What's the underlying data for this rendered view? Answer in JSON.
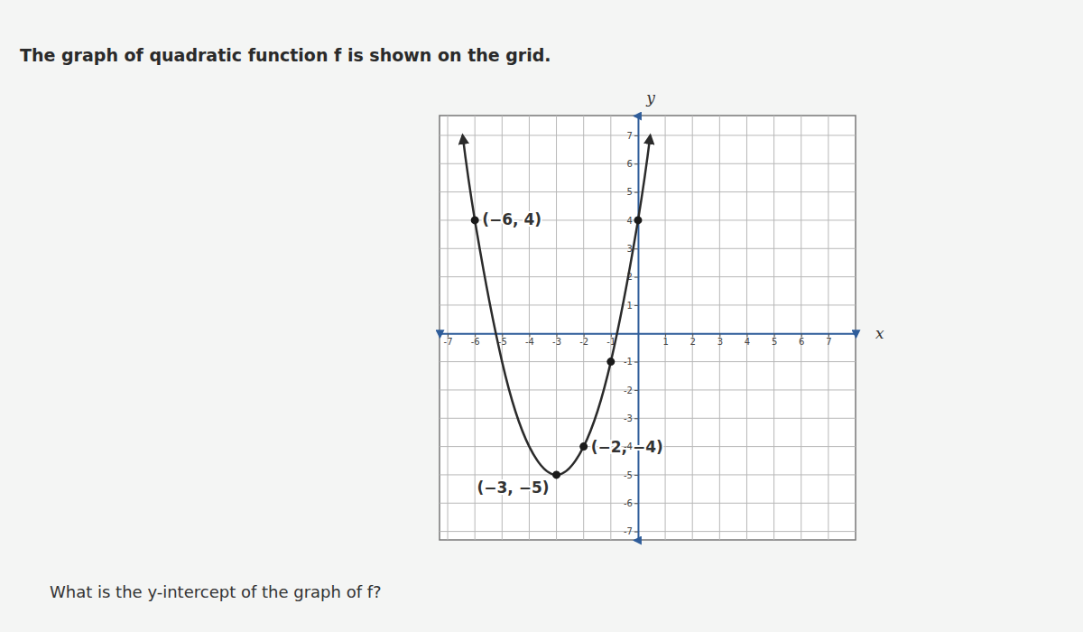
{
  "chart_data": {
    "type": "line",
    "title": "The graph of quadratic function f is shown on the grid.",
    "caption": "What is the y-intercept of the graph of f?",
    "xlabel": "x",
    "ylabel": "y",
    "xlim": [
      -7.3,
      8
    ],
    "ylim": [
      -7.3,
      7.7
    ],
    "xticks": [
      -7,
      -6,
      -5,
      -4,
      -3,
      -2,
      -1,
      1,
      2,
      3,
      4,
      5,
      6,
      7
    ],
    "yticks": [
      -7,
      -6,
      -5,
      -4,
      -3,
      -2,
      -1,
      1,
      2,
      3,
      4,
      5,
      6,
      7
    ],
    "grid": true,
    "series": [
      {
        "type": "line",
        "color": "#2b2b2b",
        "line_style": "solid",
        "x": [
          -6.45,
          -6,
          -5,
          -4,
          -3,
          -2,
          -1,
          0,
          0.45
        ],
        "values": [
          7,
          4,
          -1,
          -4,
          -5,
          -4,
          -1,
          4,
          7
        ]
      },
      {
        "type": "scatter",
        "color": "#1a1a1a",
        "marker": "circle",
        "x": [
          -6,
          -3,
          -2,
          0,
          -1
        ],
        "values": [
          4,
          -5,
          -4,
          4,
          -1
        ]
      }
    ],
    "annotations": [
      {
        "text": "(−6, 4)",
        "x": -6,
        "y": 4
      },
      {
        "text": "(−3, −5)",
        "x": -3,
        "y": -5
      },
      {
        "text": "(−2, −4)",
        "x": -2,
        "y": -4
      }
    ]
  }
}
